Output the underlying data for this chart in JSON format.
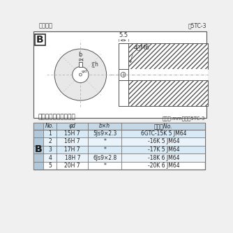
{
  "title_left": "軸穴形状",
  "title_right": "図5TC-3",
  "table_title": "軸穴形状コード一覧表",
  "table_unit": "（単位:mm）　表5TC-3",
  "bg_color": "#f0f0f0",
  "diagram_bg": "#ffffff",
  "table_header_bg": "#c5d8e8",
  "table_row_bg_odd": "#d8eaf5",
  "table_row_bg_even": "#eaf3fa",
  "table_b_col_bg": "#b0c8da",
  "dim_55": "5.5",
  "dim_4M6": "4－M6",
  "label_b": "b",
  "label_h": "h",
  "label_phid": "φd",
  "label_B": "B",
  "header_no": "No.",
  "header_phid": "φd",
  "header_bxh": "b×h",
  "header_code": "コードNo.",
  "col_B": "B",
  "rows": [
    [
      "1",
      "15H 7",
      "5Js9×2.3",
      "6GTC-15K 5 JM64"
    ],
    [
      "2",
      "16H 7",
      "*",
      "-16K 5 JM64"
    ],
    [
      "3",
      "17H 7",
      "*",
      "-17K 5 JM64"
    ],
    [
      "4",
      "18H 7",
      "6Js9×2.8",
      "-18K 6 JM64"
    ],
    [
      "5",
      "20H 7",
      "*",
      "-20K 6 JM64"
    ]
  ]
}
